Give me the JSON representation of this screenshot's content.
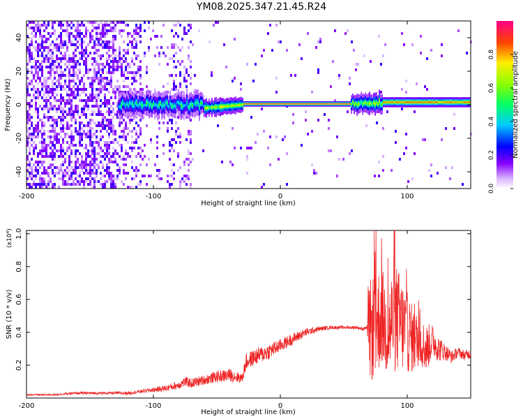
{
  "title": "YM08.2025.347.21.45.R24",
  "chart_data": [
    {
      "type": "heatmap",
      "xlabel": "Height of straight line (km)",
      "ylabel": "Frequency (Hz)",
      "xlim": [
        -200,
        150
      ],
      "ylim": [
        -50,
        50
      ],
      "xticks": [
        -200,
        -100,
        0,
        100
      ],
      "xtick_labels": [
        "-200",
        "-100",
        "0",
        "100"
      ],
      "yticks": [
        -40,
        -20,
        0,
        20,
        40
      ],
      "ytick_labels": [
        "-40",
        "-20",
        "0",
        "20",
        "40"
      ],
      "colorbar": {
        "label": "Normalized spectral amplitude",
        "range": [
          0,
          1
        ],
        "ticks": [
          0.0,
          0.2,
          0.4,
          0.6,
          0.8
        ],
        "tick_labels": [
          "0.0",
          "0.2",
          "0.4",
          "0.6",
          "0.8"
        ]
      },
      "features": [
        {
          "name": "broadband-noise",
          "x_range": [
            -200,
            -60
          ],
          "y_range": [
            -50,
            50
          ],
          "amplitude": 0.25
        },
        {
          "name": "signal-band",
          "x_range": [
            -125,
            150
          ],
          "center_hz": 0,
          "amplitude": 1.0
        }
      ]
    },
    {
      "type": "line",
      "xlabel": "Height of straight line (km)",
      "ylabel": "SNR (10 * v/v)",
      "y_multiplier": "(x10⁴)",
      "xlim": [
        -200,
        150
      ],
      "ylim": [
        0,
        1.02
      ],
      "xticks": [
        -200,
        -100,
        0,
        100
      ],
      "xtick_labels": [
        "-200",
        "-100",
        "0",
        "100"
      ],
      "yticks": [
        0.2,
        0.4,
        0.6,
        0.8,
        1.0
      ],
      "ytick_labels": [
        "0.2",
        "0.4",
        "0.6",
        "0.8",
        "1.0"
      ],
      "series": [
        {
          "name": "SNR",
          "color": "#ee2222",
          "x": [
            -200,
            -180,
            -160,
            -140,
            -120,
            -110,
            -100,
            -90,
            -80,
            -75,
            -70,
            -60,
            -50,
            -40,
            -30,
            -27,
            -20,
            -10,
            0,
            10,
            20,
            30,
            40,
            50,
            60,
            65,
            68,
            70,
            75,
            80,
            85,
            90,
            95,
            100,
            105,
            110,
            115,
            120,
            125,
            130,
            135,
            140,
            145,
            150
          ],
          "y": [
            0.02,
            0.02,
            0.03,
            0.03,
            0.03,
            0.04,
            0.05,
            0.06,
            0.08,
            0.1,
            0.09,
            0.11,
            0.13,
            0.14,
            0.12,
            0.22,
            0.25,
            0.28,
            0.32,
            0.36,
            0.4,
            0.42,
            0.43,
            0.43,
            0.43,
            0.42,
            0.43,
            0.4,
            0.45,
            0.5,
            0.4,
            0.5,
            0.45,
            0.4,
            0.35,
            0.35,
            0.3,
            0.35,
            0.3,
            0.28,
            0.25,
            0.28,
            0.26,
            0.27
          ],
          "noise_amplitude": [
            0.005,
            0.005,
            0.008,
            0.008,
            0.01,
            0.01,
            0.015,
            0.02,
            0.025,
            0.03,
            0.03,
            0.03,
            0.035,
            0.04,
            0.03,
            0.05,
            0.05,
            0.05,
            0.04,
            0.035,
            0.025,
            0.015,
            0.01,
            0.01,
            0.01,
            0.01,
            0.01,
            0.3,
            0.35,
            0.3,
            0.3,
            0.35,
            0.3,
            0.25,
            0.2,
            0.15,
            0.15,
            0.1,
            0.08,
            0.05,
            0.04,
            0.03,
            0.03,
            0.03
          ]
        }
      ]
    }
  ]
}
